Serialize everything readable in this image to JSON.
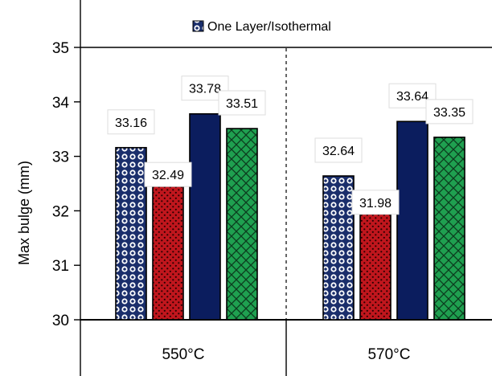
{
  "chart_data": {
    "type": "bar",
    "title": "",
    "xlabel": "",
    "ylabel": "Max bulge (mm)",
    "ylim": [
      30,
      35
    ],
    "yticks": [
      30,
      31,
      32,
      33,
      34,
      35
    ],
    "grid": false,
    "legend_position": "top",
    "categories": [
      "550°C",
      "570°C"
    ],
    "series": [
      {
        "name": "One Layer/Isothermal",
        "values": [
          33.16,
          32.64
        ],
        "color": "#1a2e6b",
        "pattern": "circles-navy"
      },
      {
        "values": [
          32.49,
          31.98
        ],
        "color": "#c0161d",
        "pattern": "dots-red"
      },
      {
        "values": [
          33.78,
          33.64
        ],
        "color": "#0b1d5e",
        "pattern": "solid"
      },
      {
        "values": [
          33.51,
          33.35
        ],
        "color": "#1fa050",
        "pattern": "lattice-green"
      }
    ],
    "data_labels": [
      [
        "33.16",
        "32.49",
        "33.78",
        "33.51"
      ],
      [
        "32.64",
        "31.98",
        "33.64",
        "33.35"
      ]
    ]
  }
}
